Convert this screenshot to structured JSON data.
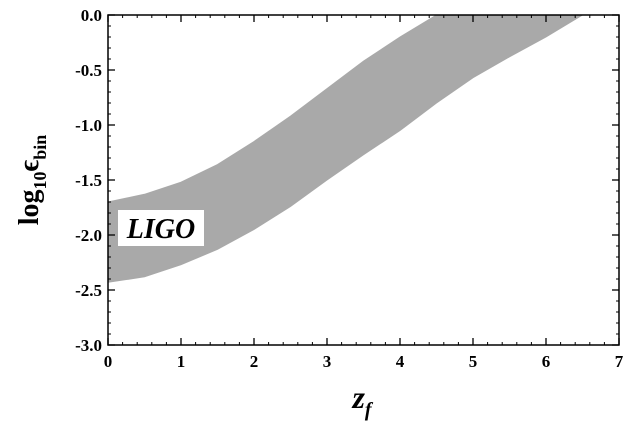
{
  "chart_data": {
    "type": "band",
    "xlabel": {
      "symbol": "z",
      "sub": "f"
    },
    "ylabel": {
      "base": "log",
      "base_sub": "10",
      "symbol": "ϵ",
      "symbol_sub": "bin"
    },
    "annotation": "LIGO",
    "color": "#a9a9a9",
    "series": [
      {
        "name": "upper",
        "x": [
          0,
          0.5,
          1,
          1.5,
          2,
          2.5,
          3,
          3.5,
          4,
          4.5
        ],
        "values": [
          -1.7,
          -1.63,
          -1.52,
          -1.36,
          -1.15,
          -0.92,
          -0.67,
          -0.42,
          -0.2,
          0.0
        ]
      },
      {
        "name": "lower",
        "x": [
          0,
          0.5,
          1,
          1.5,
          2,
          2.5,
          3,
          3.5,
          4,
          4.5,
          5,
          5.5,
          6,
          6.5
        ],
        "values": [
          -2.43,
          -2.38,
          -2.27,
          -2.13,
          -1.95,
          -1.74,
          -1.5,
          -1.27,
          -1.05,
          -0.8,
          -0.57,
          -0.38,
          -0.2,
          0.0
        ]
      }
    ],
    "xlim": [
      0,
      7
    ],
    "xticks": [
      0,
      1,
      2,
      3,
      4,
      5,
      6,
      7
    ],
    "ylim": [
      -3.0,
      0.0
    ],
    "yticks": [
      {
        "value": 0,
        "label": "0.0"
      },
      -0.5,
      {
        "value": -1,
        "label": "-1.0"
      },
      -1.5,
      {
        "value": -2,
        "label": "-2.0"
      },
      -2.5,
      {
        "value": -3,
        "label": "-3.0"
      }
    ]
  }
}
